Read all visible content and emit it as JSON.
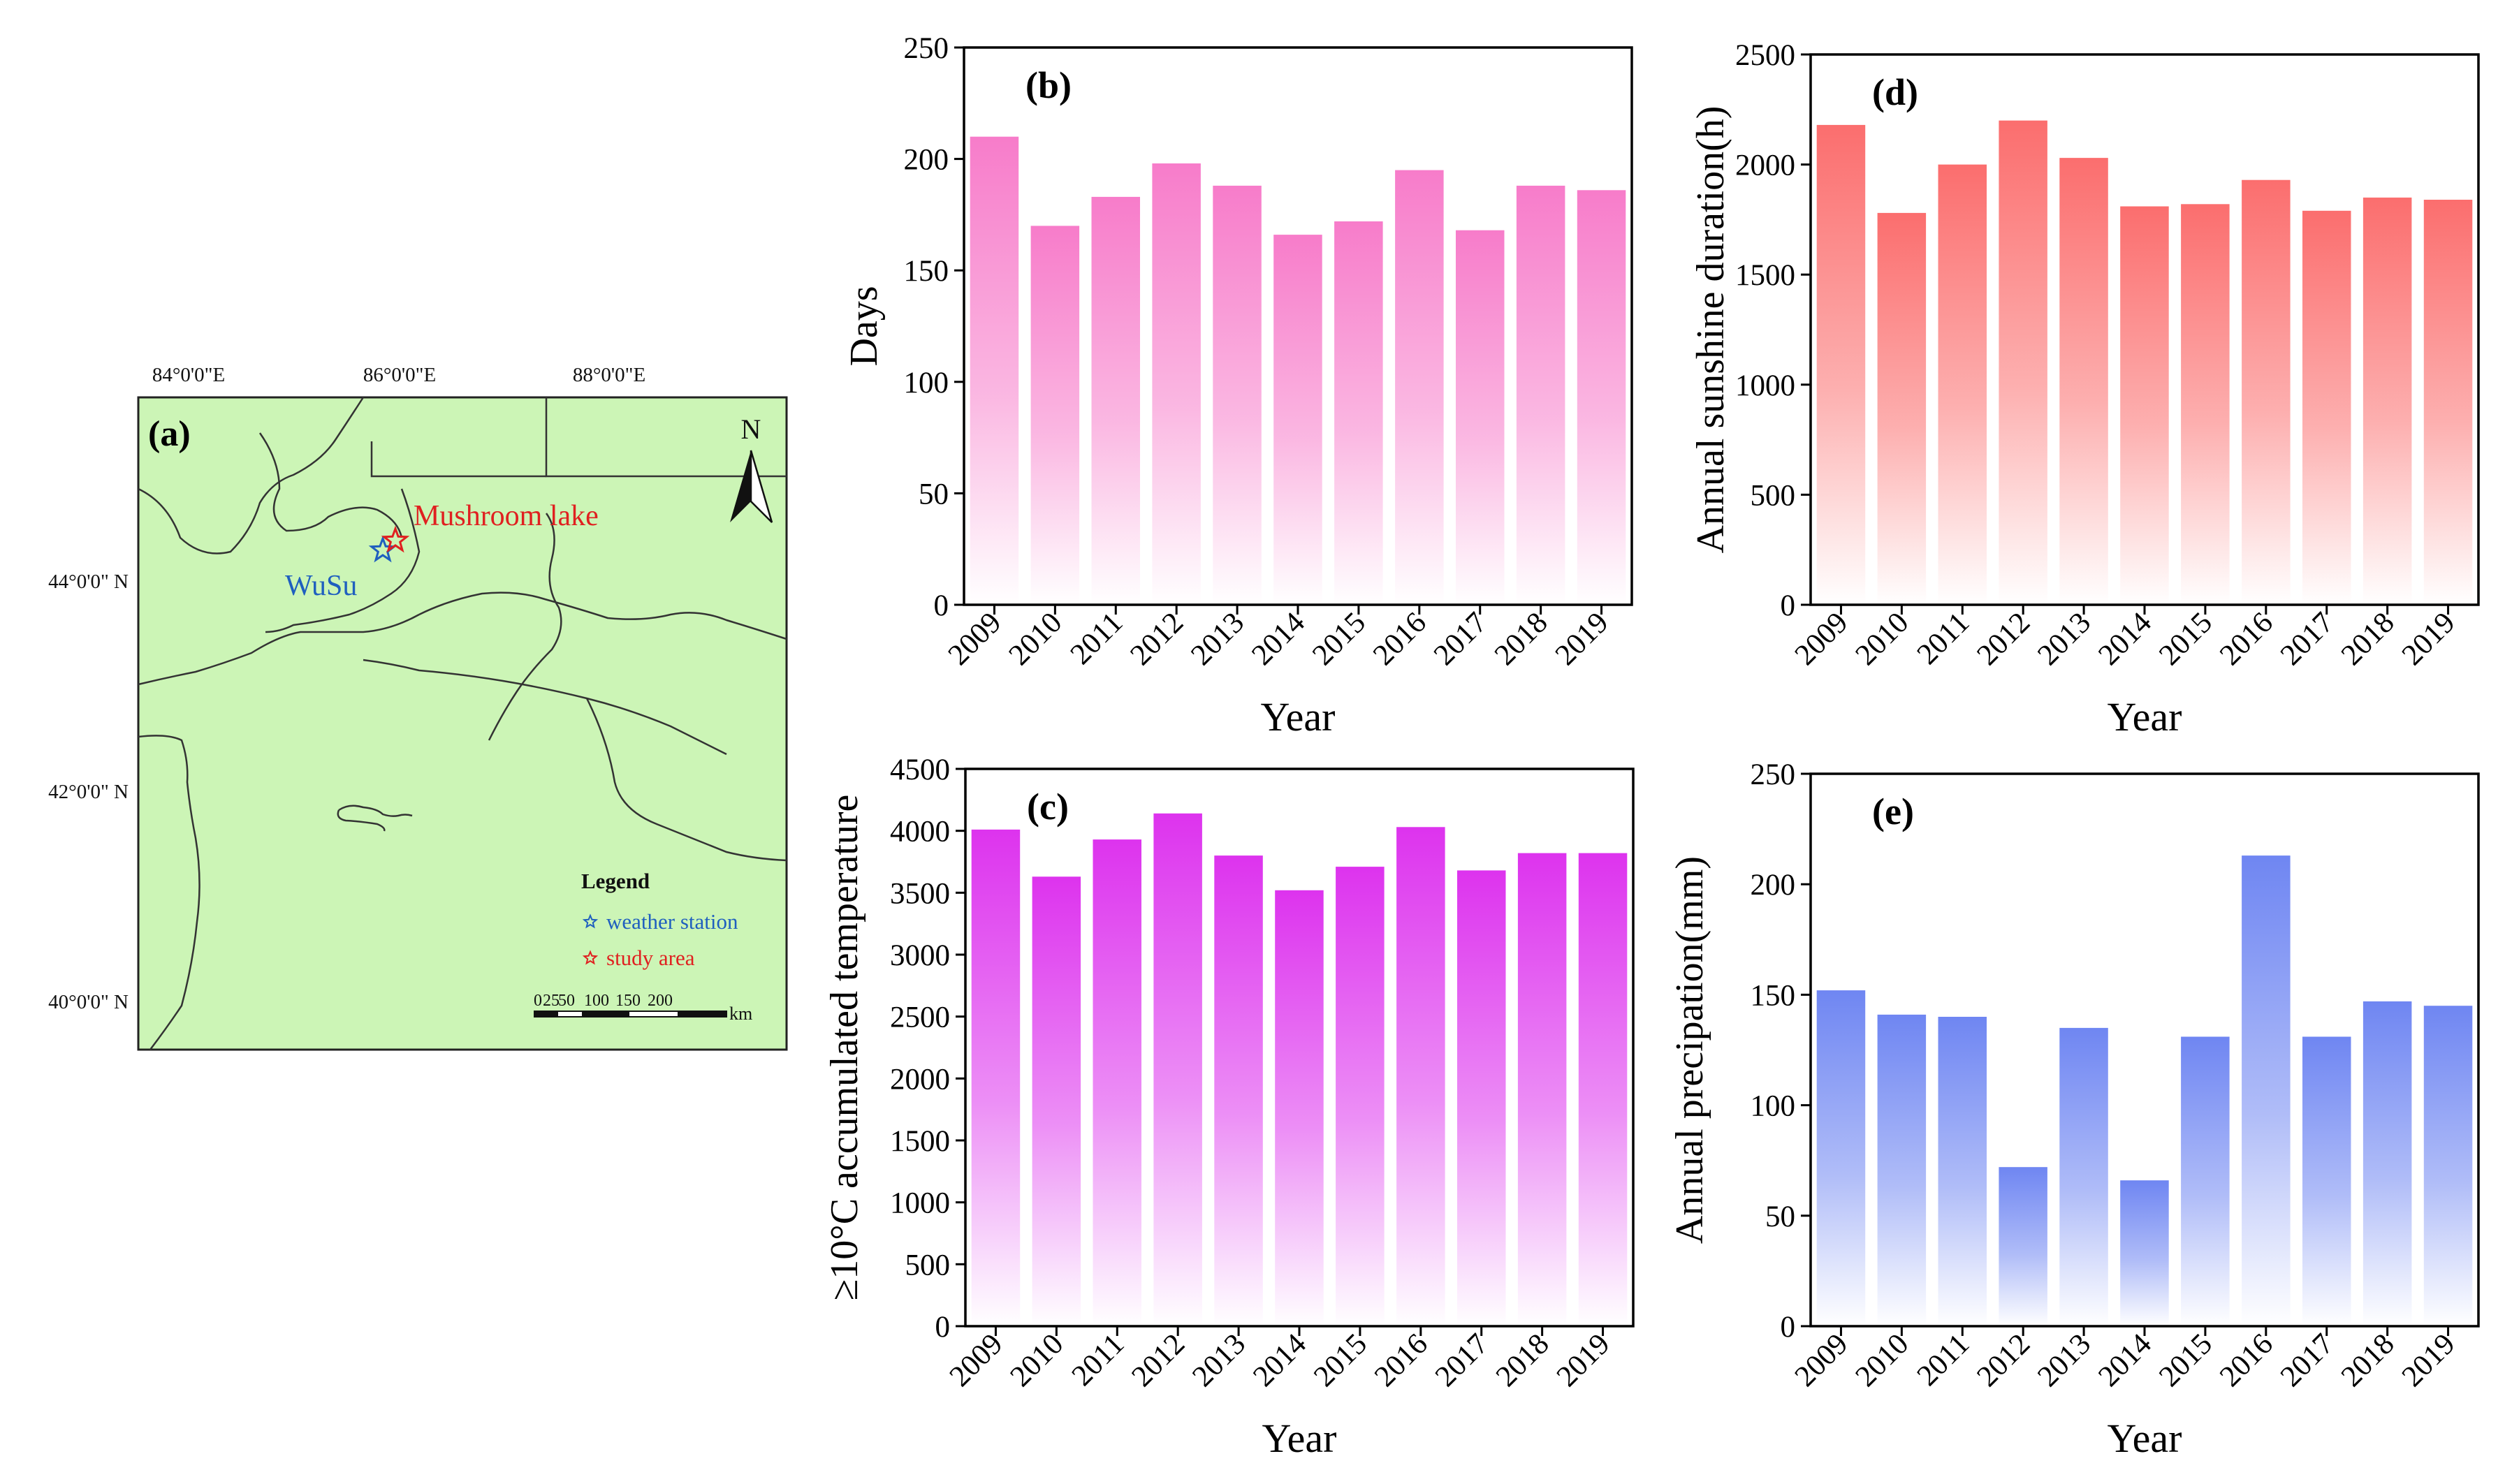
{
  "map": {
    "panel_label": "(a)",
    "lon_labels": [
      "84°0'0\"E",
      "86°0'0\"E",
      "88°0'0\"E"
    ],
    "lat_labels": [
      "44°0'0\" N",
      "42°0'0\" N",
      "40°0'0\" N"
    ],
    "north_label": "N",
    "station_name": "WuSu",
    "study_name": "Mushroom lake",
    "legend_title": "Legend",
    "legend_station": "weather station",
    "legend_study": "study area",
    "scale_ticks": [
      "0",
      "25",
      "50",
      "100",
      "150",
      "200"
    ],
    "scale_unit": "km",
    "colors": {
      "land": "#ccf5b6",
      "station": "#1f5fbf",
      "study": "#e02020"
    },
    "station_symbol": "star-icon",
    "north_symbol": "north-arrow-icon"
  },
  "chart_data": [
    {
      "type": "bar",
      "panel": "(b)",
      "categories": [
        "2009",
        "2010",
        "2011",
        "2012",
        "2013",
        "2014",
        "2015",
        "2016",
        "2017",
        "2018",
        "2019"
      ],
      "values": [
        210,
        170,
        183,
        198,
        188,
        166,
        172,
        195,
        168,
        188,
        186
      ],
      "xlabel": "Year",
      "ylabel": "Days",
      "ylim": [
        0,
        250
      ],
      "yticks": [
        "0",
        "50",
        "100",
        "150",
        "200",
        "250"
      ],
      "color": "#f77cca"
    },
    {
      "type": "bar",
      "panel": "(c)",
      "categories": [
        "2009",
        "2010",
        "2011",
        "2012",
        "2013",
        "2014",
        "2015",
        "2016",
        "2017",
        "2018",
        "2019"
      ],
      "values": [
        4010,
        3630,
        3930,
        4140,
        3800,
        3520,
        3710,
        4030,
        3680,
        3820,
        3820
      ],
      "xlabel": "Year",
      "ylabel": "≥10°C accumulated temperature",
      "ylim": [
        0,
        4500
      ],
      "yticks": [
        "0",
        "500",
        "1000",
        "1500",
        "2000",
        "2500",
        "3000",
        "3500",
        "4000",
        "4500"
      ],
      "color": "#dd33ee"
    },
    {
      "type": "bar",
      "panel": "(d)",
      "categories": [
        "2009",
        "2010",
        "2011",
        "2012",
        "2013",
        "2014",
        "2015",
        "2016",
        "2017",
        "2018",
        "2019"
      ],
      "values": [
        2180,
        1780,
        2000,
        2200,
        2030,
        1810,
        1820,
        1930,
        1790,
        1850,
        1840
      ],
      "xlabel": "Year",
      "ylabel": "Annual sunshine duration(h)",
      "ylim": [
        0,
        2500
      ],
      "yticks": [
        "0",
        "500",
        "1000",
        "1500",
        "2000",
        "2500"
      ],
      "color": "#fb6e6e"
    },
    {
      "type": "bar",
      "panel": "(e)",
      "categories": [
        "2009",
        "2010",
        "2011",
        "2012",
        "2013",
        "2014",
        "2015",
        "2016",
        "2017",
        "2018",
        "2019"
      ],
      "values": [
        152,
        141,
        140,
        72,
        135,
        66,
        131,
        213,
        131,
        147,
        145
      ],
      "xlabel": "Year",
      "ylabel": "Annual precipation(mm)",
      "ylim": [
        0,
        250
      ],
      "yticks": [
        "0",
        "50",
        "100",
        "150",
        "200",
        "250"
      ],
      "color": "#6f86f2"
    }
  ]
}
